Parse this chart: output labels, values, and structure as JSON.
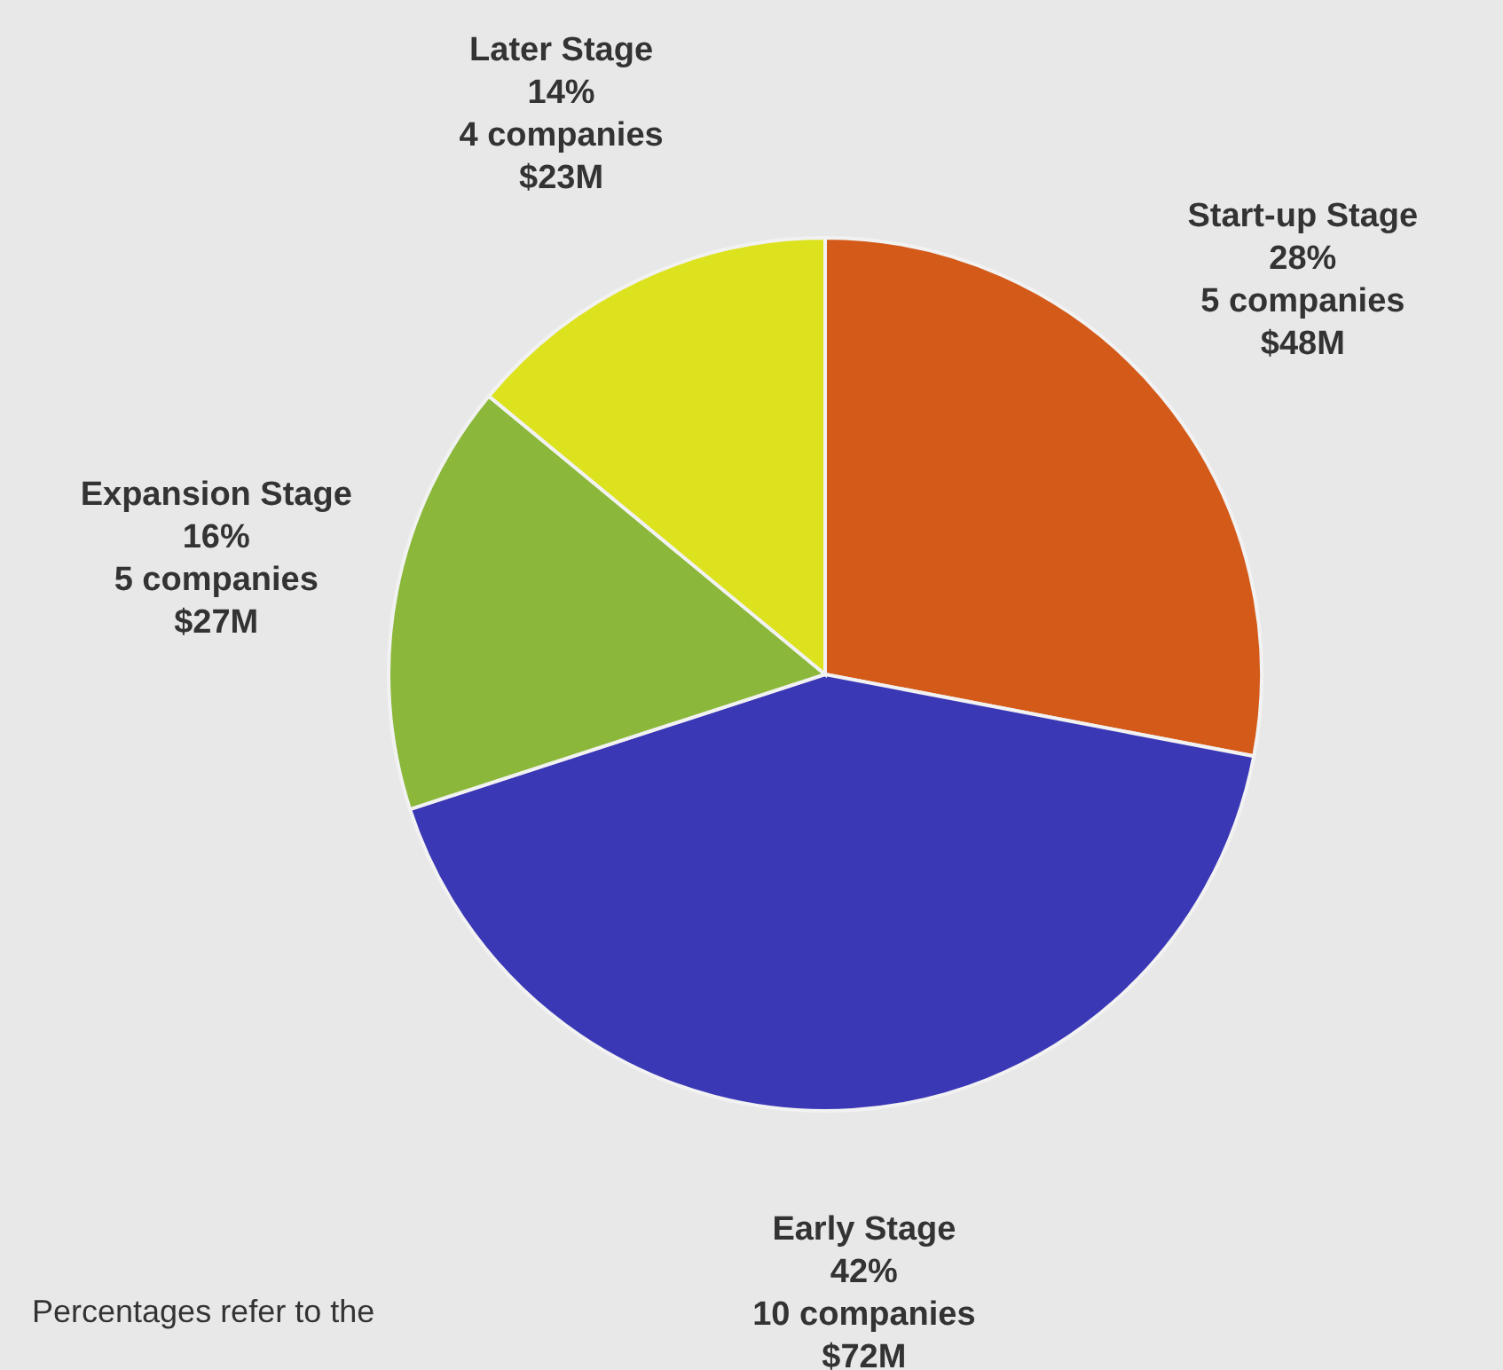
{
  "chart_data": {
    "type": "pie",
    "categories": [
      "Start-up Stage",
      "Early Stage",
      "Expansion Stage",
      "Later Stage"
    ],
    "values": [
      28,
      42,
      16,
      14
    ],
    "colors": [
      "#d45a1a",
      "#3b38b6",
      "#8bb83a",
      "#dde21f"
    ],
    "value_labels": [
      "28%\n5 companies\n$48M",
      "42%\n10 companies\n$72M",
      "16%\n5 companies\n$27M",
      "14%\n4 companies\n$23M"
    ],
    "annotations": [
      "Percentages refer to the"
    ]
  }
}
